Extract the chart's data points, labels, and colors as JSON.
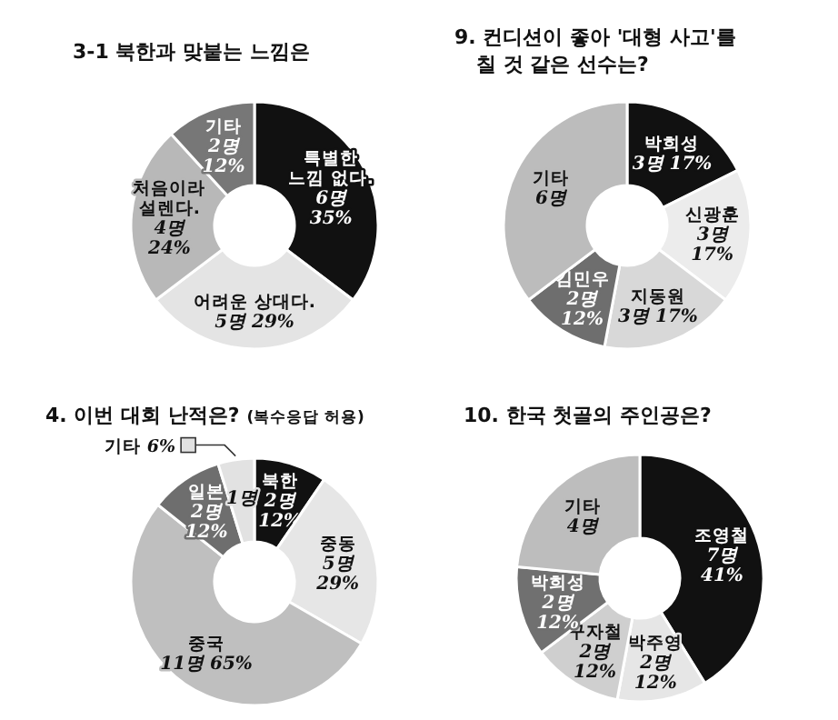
{
  "chart_data": [
    {
      "type": "donut",
      "title": "3-1 북한과 맞붙는 느낌은",
      "categories": [
        "특별한\n느낌 없다.",
        "어려운 상대다.",
        "처음이라\n설렌다.",
        "기타"
      ],
      "values": [
        6,
        5,
        4,
        2
      ],
      "colors": [
        "#111111",
        "#e4e4e4",
        "#b8b8b8",
        "#777777"
      ],
      "value_labels": [
        "6명\n35%",
        "5명 29%",
        "4명\n24%",
        "2명\n12%"
      ]
    },
    {
      "type": "donut",
      "title": "9. 컨디션이 좋아 '대형 사고'를\n칠 것 같은 선수는?",
      "categories": [
        "박희성",
        "신광훈",
        "지동원",
        "김민우",
        "기타"
      ],
      "values": [
        3,
        3,
        3,
        2,
        6
      ],
      "colors": [
        "#111111",
        "#ececec",
        "#d8d8d8",
        "#6e6e6e",
        "#bcbcbc"
      ],
      "value_labels": [
        "3명 17%",
        "3명\n17%",
        "3명 17%",
        "2명\n12%",
        "6명"
      ]
    },
    {
      "type": "donut",
      "title": "4. 이번 대회 난적은?",
      "subtitle": "(복수응답 허용)",
      "categories": [
        "북한",
        "중동",
        "중국",
        "일본",
        "기타"
      ],
      "values": [
        2,
        5,
        11,
        2,
        1
      ],
      "colors": [
        "#111111",
        "#e6e6e6",
        "#bfbfbf",
        "#6e6e6e",
        "#e2e2e2"
      ],
      "value_labels": [
        "2명\n12%",
        "5명\n29%",
        "11명 65%",
        "2명\n12%",
        "1명\n6%"
      ]
    },
    {
      "type": "donut",
      "title": "10. 한국 첫골의 주인공은?",
      "categories": [
        "조영철",
        "박주영",
        "구자철",
        "박희성",
        "기타"
      ],
      "values": [
        7,
        2,
        2,
        2,
        4
      ],
      "colors": [
        "#111111",
        "#e6e6e6",
        "#cfcfcf",
        "#707070",
        "#bdbdbd"
      ],
      "value_labels": [
        "7명\n41%",
        "2명\n12%",
        "2명\n12%",
        "2명\n12%",
        "4명"
      ]
    }
  ]
}
